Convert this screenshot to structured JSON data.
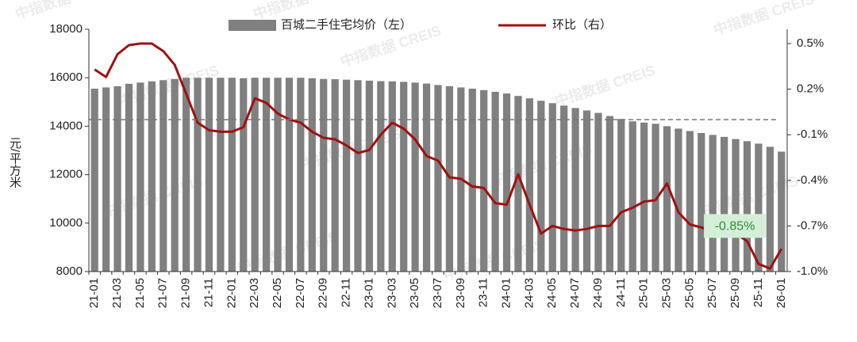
{
  "chart_data": {
    "type": "bar_line",
    "legend": "top",
    "y_axis_label": "元/平方米",
    "watermark": "中指数据 CREIS",
    "annotation": "-0.85%",
    "reference_line": 14270,
    "categories": [
      "21-01",
      null,
      "21-03",
      null,
      "21-05",
      null,
      "21-07",
      null,
      "21-09",
      null,
      "21-11",
      null,
      "22-01",
      null,
      "22-03",
      null,
      "22-05",
      null,
      "22-07",
      null,
      "22-09",
      null,
      "22-11",
      null,
      "23-01",
      null,
      "23-03",
      null,
      "23-05",
      null,
      "23-07",
      null,
      "23-09",
      null,
      "23-11",
      null,
      "24-01",
      null,
      "24-03",
      null,
      "24-05",
      null,
      "24-07",
      null,
      "24-09",
      null,
      "24-11",
      null,
      "25-01",
      null,
      "25-03",
      null,
      "25-05",
      null,
      "25-07",
      null,
      "25-09",
      null,
      "25-11",
      null,
      "26-01"
    ],
    "series": [
      {
        "name": "百城二手住宅均价（左）",
        "color": "#808080",
        "type": "bar",
        "axis": "y",
        "values": [
          15550,
          15600,
          15650,
          15750,
          15800,
          15850,
          15900,
          15950,
          16000,
          16000,
          16000,
          16000,
          16000,
          15980,
          16000,
          16000,
          16000,
          16000,
          16000,
          15980,
          15950,
          15940,
          15920,
          15900,
          15880,
          15860,
          15850,
          15830,
          15800,
          15760,
          15700,
          15650,
          15600,
          15550,
          15490,
          15420,
          15350,
          15250,
          15150,
          15050,
          14950,
          14850,
          14750,
          14650,
          14550,
          14420,
          14300,
          14200,
          14150,
          14100,
          14000,
          13900,
          13800,
          13720,
          13640,
          13560,
          13470,
          13380,
          13280,
          13150,
          12950
        ]
      },
      {
        "name": "环比（右）",
        "color": "#a01010",
        "type": "line",
        "axis": "y2",
        "values": [
          0.33,
          0.28,
          0.43,
          0.49,
          0.5,
          0.5,
          0.45,
          0.36,
          0.17,
          -0.02,
          -0.07,
          -0.08,
          -0.08,
          -0.05,
          0.14,
          0.11,
          0.04,
          0.0,
          -0.02,
          -0.08,
          -0.12,
          -0.13,
          -0.17,
          -0.22,
          -0.2,
          -0.1,
          -0.02,
          -0.06,
          -0.13,
          -0.24,
          -0.27,
          -0.38,
          -0.39,
          -0.44,
          -0.45,
          -0.55,
          -0.56,
          -0.36,
          -0.56,
          -0.75,
          -0.7,
          -0.72,
          -0.73,
          -0.72,
          -0.7,
          -0.7,
          -0.61,
          -0.58,
          -0.54,
          -0.53,
          -0.42,
          -0.61,
          -0.69,
          -0.71,
          -0.74,
          -0.77,
          -0.75,
          -0.8,
          -0.95,
          -0.98,
          -0.85
        ]
      }
    ],
    "ylim": [
      8000,
      18000
    ],
    "yticks": [
      8000,
      10000,
      12000,
      14000,
      16000,
      18000
    ],
    "y2lim": [
      -1.0,
      0.594
    ],
    "y2ticks": [
      {
        "value": 0.5,
        "label": "0.5%"
      },
      {
        "value": 0.2,
        "label": "0.2%"
      },
      {
        "value": -0.1,
        "label": "-0.1%"
      },
      {
        "value": -0.4,
        "label": "-0.4%"
      },
      {
        "value": -0.7,
        "label": "-0.7%"
      },
      {
        "value": -1.0,
        "label": "-1.0%"
      }
    ]
  }
}
